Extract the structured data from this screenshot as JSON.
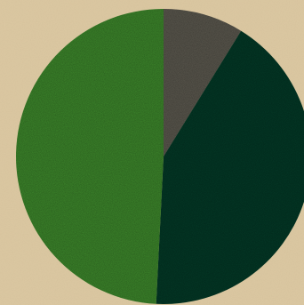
{
  "chart_data": {
    "type": "pie",
    "start_angle_deg": 0,
    "direction": "clockwise",
    "slices": [
      {
        "value": 8.8,
        "color": "#5d5a50"
      },
      {
        "value": 42.0,
        "color": "#033a27"
      },
      {
        "value": 49.2,
        "color": "#3e8a2c"
      }
    ],
    "legend": "none"
  },
  "colors": {
    "background": "#dcc9a3"
  }
}
